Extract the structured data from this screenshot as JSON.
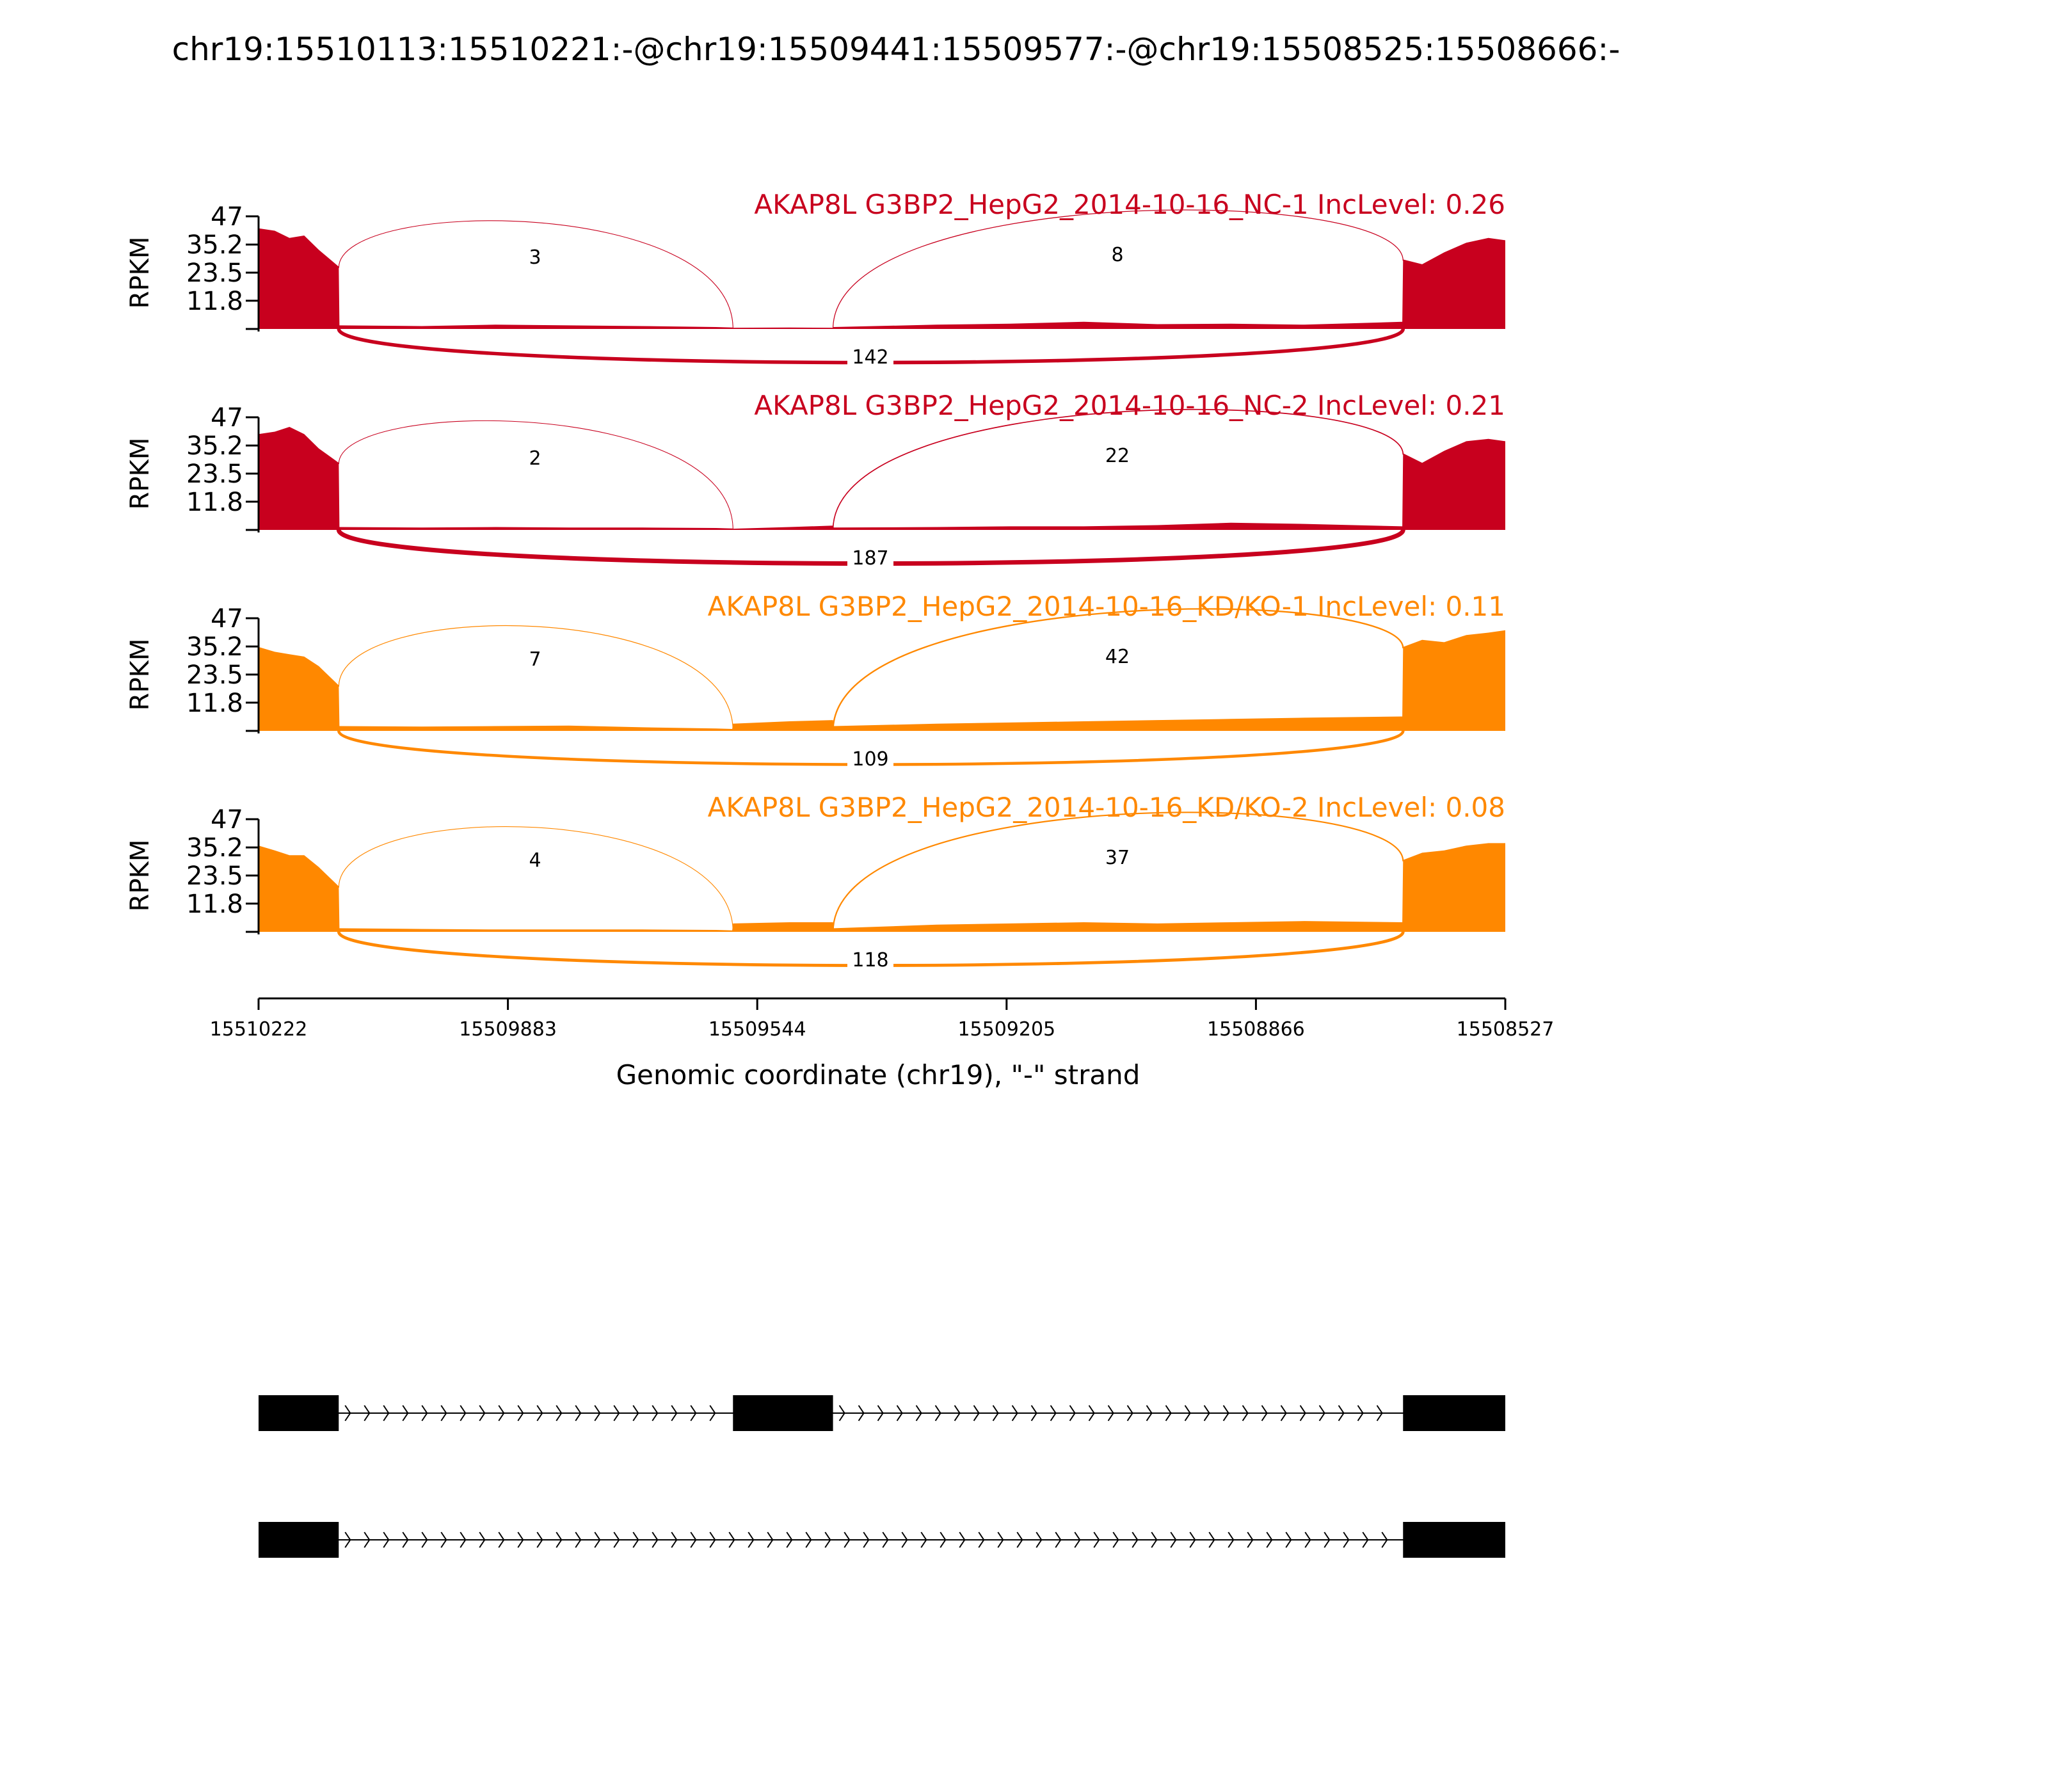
{
  "chart_data": {
    "type": "area",
    "title": "chr19:15510113:15510221:-@chr19:15509441:15509577:-@chr19:15508525:15508666:-",
    "xlabel": "Genomic coordinate (chr19), \"-\" strand",
    "ylabel": "RPKM",
    "xlim": [
      15510222,
      15508527
    ],
    "x_reversed": true,
    "ylim": [
      0,
      47
    ],
    "xticks": [
      "15510222",
      "15509883",
      "15509544",
      "15509205",
      "15508866",
      "15508527"
    ],
    "yticks": [
      "11.8",
      "23.5",
      "35.2",
      "47"
    ],
    "exons": [
      {
        "start": 15510221,
        "end": 15510113
      },
      {
        "start": 15509577,
        "end": 15509441
      },
      {
        "start": 15508666,
        "end": 15508527
      }
    ],
    "colors": {
      "NC": "#c8001e",
      "KDKO": "#ff8800",
      "gene": "#000000"
    },
    "series": [
      {
        "name": "AKAP8L G3BP2_HepG2_2014-10-16_NC-1 IncLevel: 0.26",
        "group": "NC",
        "coverage_x": [
          15510222,
          15510200,
          15510180,
          15510160,
          15510140,
          15510113,
          15510112,
          15510000,
          15509900,
          15509800,
          15509700,
          15509600,
          15509578,
          15509577,
          15509500,
          15509441,
          15509440,
          15509300,
          15509200,
          15509100,
          15509000,
          15508900,
          15508800,
          15508667,
          15508666,
          15508640,
          15508610,
          15508580,
          15508550,
          15508527
        ],
        "coverage_y": [
          42,
          41,
          38,
          39,
          33,
          26,
          1.5,
          1.2,
          1.8,
          1.5,
          1.2,
          0.8,
          0.6,
          0.5,
          0.6,
          0.5,
          0.8,
          1.8,
          2.2,
          3.0,
          2.0,
          2.2,
          1.8,
          3.0,
          29,
          27,
          32,
          36,
          38,
          37
        ],
        "junctions": [
          {
            "from": 15510113,
            "to": 15509577,
            "count": 3
          },
          {
            "from": 15509441,
            "to": 15508666,
            "count": 8
          },
          {
            "from": 15510113,
            "to": 15508666,
            "count": 142
          }
        ]
      },
      {
        "name": "AKAP8L G3BP2_HepG2_2014-10-16_NC-2 IncLevel: 0.21",
        "group": "NC",
        "coverage_x": [
          15510222,
          15510200,
          15510180,
          15510160,
          15510140,
          15510113,
          15510112,
          15510000,
          15509900,
          15509800,
          15509700,
          15509600,
          15509578,
          15509577,
          15509500,
          15509441,
          15509440,
          15509300,
          15509200,
          15509100,
          15509000,
          15508900,
          15508800,
          15508667,
          15508666,
          15508640,
          15508610,
          15508580,
          15508550,
          15508527
        ],
        "coverage_y": [
          40,
          41,
          43,
          40,
          34,
          28,
          1.2,
          1.0,
          1.2,
          1.0,
          1.0,
          0.8,
          0.6,
          0.5,
          1.2,
          1.8,
          1.0,
          1.2,
          1.5,
          1.5,
          2.0,
          3.0,
          2.5,
          1.5,
          32,
          28,
          33,
          37,
          38,
          37
        ],
        "junctions": [
          {
            "from": 15510113,
            "to": 15509577,
            "count": 2
          },
          {
            "from": 15509441,
            "to": 15508666,
            "count": 22
          },
          {
            "from": 15510113,
            "to": 15508666,
            "count": 187
          }
        ]
      },
      {
        "name": "AKAP8L G3BP2_HepG2_2014-10-16_KD/KO-1 IncLevel: 0.11",
        "group": "KDKO",
        "coverage_x": [
          15510222,
          15510200,
          15510180,
          15510160,
          15510140,
          15510113,
          15510112,
          15510000,
          15509900,
          15509800,
          15509700,
          15509600,
          15509578,
          15509577,
          15509500,
          15509441,
          15509440,
          15509300,
          15509200,
          15509100,
          15509000,
          15508900,
          15508800,
          15508667,
          15508666,
          15508640,
          15508610,
          15508580,
          15508550,
          15508527
        ],
        "coverage_y": [
          35,
          33,
          32,
          31,
          27,
          19,
          2.0,
          1.8,
          2.0,
          2.2,
          1.5,
          1.0,
          0.8,
          3.0,
          4.0,
          4.5,
          2.0,
          3.0,
          3.5,
          4.0,
          4.5,
          5.0,
          5.5,
          6.0,
          35,
          38,
          37,
          40,
          41,
          42
        ],
        "junctions": [
          {
            "from": 15510113,
            "to": 15509577,
            "count": 7
          },
          {
            "from": 15509441,
            "to": 15508666,
            "count": 42
          },
          {
            "from": 15510113,
            "to": 15508666,
            "count": 109
          }
        ]
      },
      {
        "name": "AKAP8L G3BP2_HepG2_2014-10-16_KD/KO-2 IncLevel: 0.08",
        "group": "KDKO",
        "coverage_x": [
          15510222,
          15510200,
          15510180,
          15510160,
          15510140,
          15510113,
          15510112,
          15510000,
          15509900,
          15509800,
          15509700,
          15509600,
          15509578,
          15509577,
          15509500,
          15509441,
          15509440,
          15509300,
          15509200,
          15509100,
          15509000,
          15508900,
          15508800,
          15508667,
          15508666,
          15508640,
          15508610,
          15508580,
          15508550,
          15508527
        ],
        "coverage_y": [
          36,
          34,
          32,
          32,
          27,
          19,
          1.5,
          1.2,
          1.0,
          1.0,
          1.0,
          0.8,
          0.6,
          3.5,
          4.0,
          4.0,
          1.5,
          3.0,
          3.5,
          4.0,
          3.5,
          4.0,
          4.5,
          4.0,
          30,
          33,
          34,
          36,
          37,
          37
        ],
        "junctions": [
          {
            "from": 15510113,
            "to": 15509577,
            "count": 4
          },
          {
            "from": 15509441,
            "to": 15508666,
            "count": 37
          },
          {
            "from": 15510113,
            "to": 15508666,
            "count": 118
          }
        ]
      }
    ],
    "isoforms": [
      {
        "exons": [
          [
            15510222,
            15510113
          ],
          [
            15509577,
            15509441
          ],
          [
            15508666,
            15508527
          ]
        ]
      },
      {
        "exons": [
          [
            15510222,
            15510113
          ],
          [
            15508666,
            15508527
          ]
        ]
      }
    ]
  }
}
